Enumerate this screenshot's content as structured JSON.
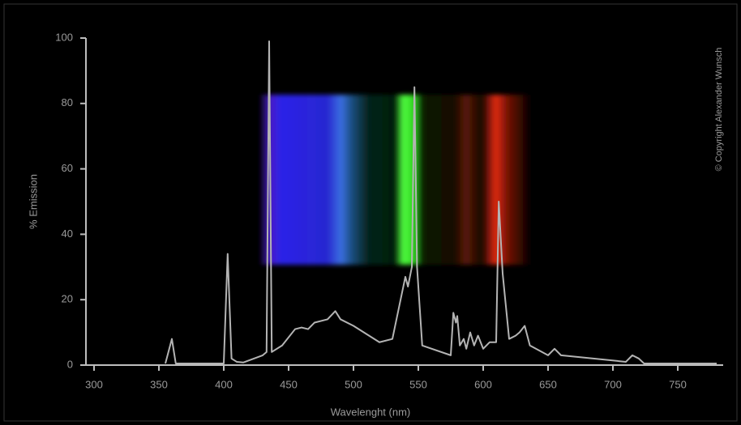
{
  "chart_data": {
    "type": "line",
    "ylabel": "% Emission",
    "xlabel": "Wavelenght (nm)",
    "copyright": "© Copyright Alexander Wunsch",
    "x": [
      355,
      360,
      363,
      400,
      403,
      406,
      410,
      415,
      430,
      433,
      435,
      437,
      445,
      455,
      460,
      465,
      470,
      480,
      486,
      490,
      500,
      520,
      530,
      540,
      542,
      545,
      547,
      549,
      553,
      575,
      577,
      579,
      580,
      582,
      585,
      587,
      590,
      593,
      596,
      600,
      605,
      610,
      612,
      615,
      620,
      625,
      628,
      632,
      636,
      650,
      655,
      660,
      710,
      715,
      720,
      724,
      780
    ],
    "values": [
      0.5,
      8,
      0.5,
      0.5,
      34,
      2,
      1,
      0.8,
      3,
      4,
      99,
      4,
      6,
      11,
      11.5,
      11,
      13,
      14,
      16.5,
      14,
      12,
      7,
      8,
      27,
      24,
      30,
      85,
      30,
      6,
      3,
      16,
      13,
      15,
      6,
      8,
      5,
      10,
      6,
      9,
      5,
      7,
      7,
      50,
      28,
      8,
      9,
      10,
      12,
      6,
      3,
      5,
      3,
      1,
      3,
      2,
      0.5,
      0.5
    ],
    "color": "#b4b4b4",
    "xlim": [
      300,
      785
    ],
    "xticks": [
      300,
      350,
      400,
      450,
      500,
      550,
      600,
      650,
      700,
      750
    ],
    "ylim": [
      0,
      100
    ],
    "yticks": [
      0,
      20,
      40,
      60,
      80,
      100
    ]
  }
}
